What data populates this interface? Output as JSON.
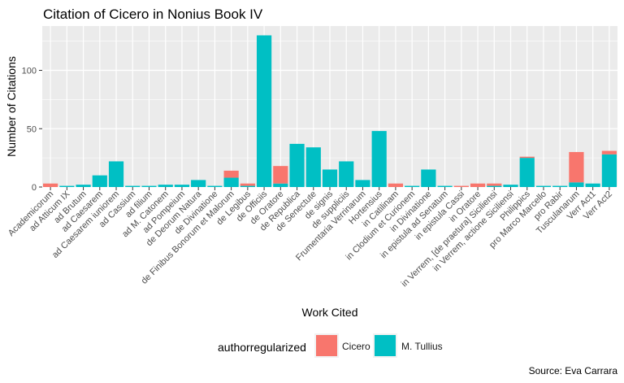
{
  "chart_data": {
    "type": "bar",
    "stacked": true,
    "title": "Citation of Cicero in Nonius Book IV",
    "xlabel": "Work Cited",
    "ylabel": "Number of Citations",
    "ylim": [
      0,
      138
    ],
    "y_ticks": [
      0,
      50,
      100
    ],
    "grid": true,
    "legend_position": "bottom",
    "legend_title": "authorregularized",
    "categories": [
      "Academicorum",
      "ad Atticum IX",
      "ad Brutum",
      "ad Caesarem",
      "ad Caesarem iuniorem",
      "ad Cassium",
      "ad filium",
      "ad M. Catonem",
      "ad Pompeium",
      "de Deorum Natura",
      "de Divinatione",
      "de Finibus Bonorum et Malorum",
      "de Legibus",
      "de Officiis",
      "de Oratore",
      "de Republica",
      "de Senectute",
      "de signis",
      "de suppliciis",
      "Frumentaria Verrinarum",
      "Hortensius",
      "in Catilinam",
      "in Clodium et Curionem",
      "in Divinatione",
      "in epistula ad Senatum",
      "in epistula Cassi",
      "in Oratore",
      "in Verrem, [de praetura] Siciliensi",
      "in Verrem, actione Siciliensi",
      "Philippics",
      "pro Marco Marcello",
      "pro Rabir",
      "Tusculanarum",
      "Verr Act1",
      "Verr Act2"
    ],
    "series": [
      {
        "name": "Cicero",
        "color": "#F8766D",
        "values": [
          3,
          0,
          0,
          0,
          0,
          0,
          0,
          0,
          0,
          0,
          0,
          6,
          2,
          0,
          15,
          0,
          0,
          0,
          0,
          0,
          0,
          3,
          0,
          0,
          0,
          1,
          3,
          2,
          0,
          1,
          0,
          0,
          26,
          0,
          3
        ]
      },
      {
        "name": "M. Tullius",
        "color": "#00BFC4",
        "values": [
          0,
          1,
          2,
          10,
          22,
          1,
          1,
          2,
          2,
          6,
          1,
          8,
          1,
          130,
          3,
          37,
          34,
          15,
          22,
          6,
          48,
          0,
          1,
          15,
          1,
          0,
          0,
          1,
          2,
          25,
          1,
          1,
          4,
          3,
          28
        ]
      }
    ]
  },
  "caption": "Source: Eva Carrara"
}
